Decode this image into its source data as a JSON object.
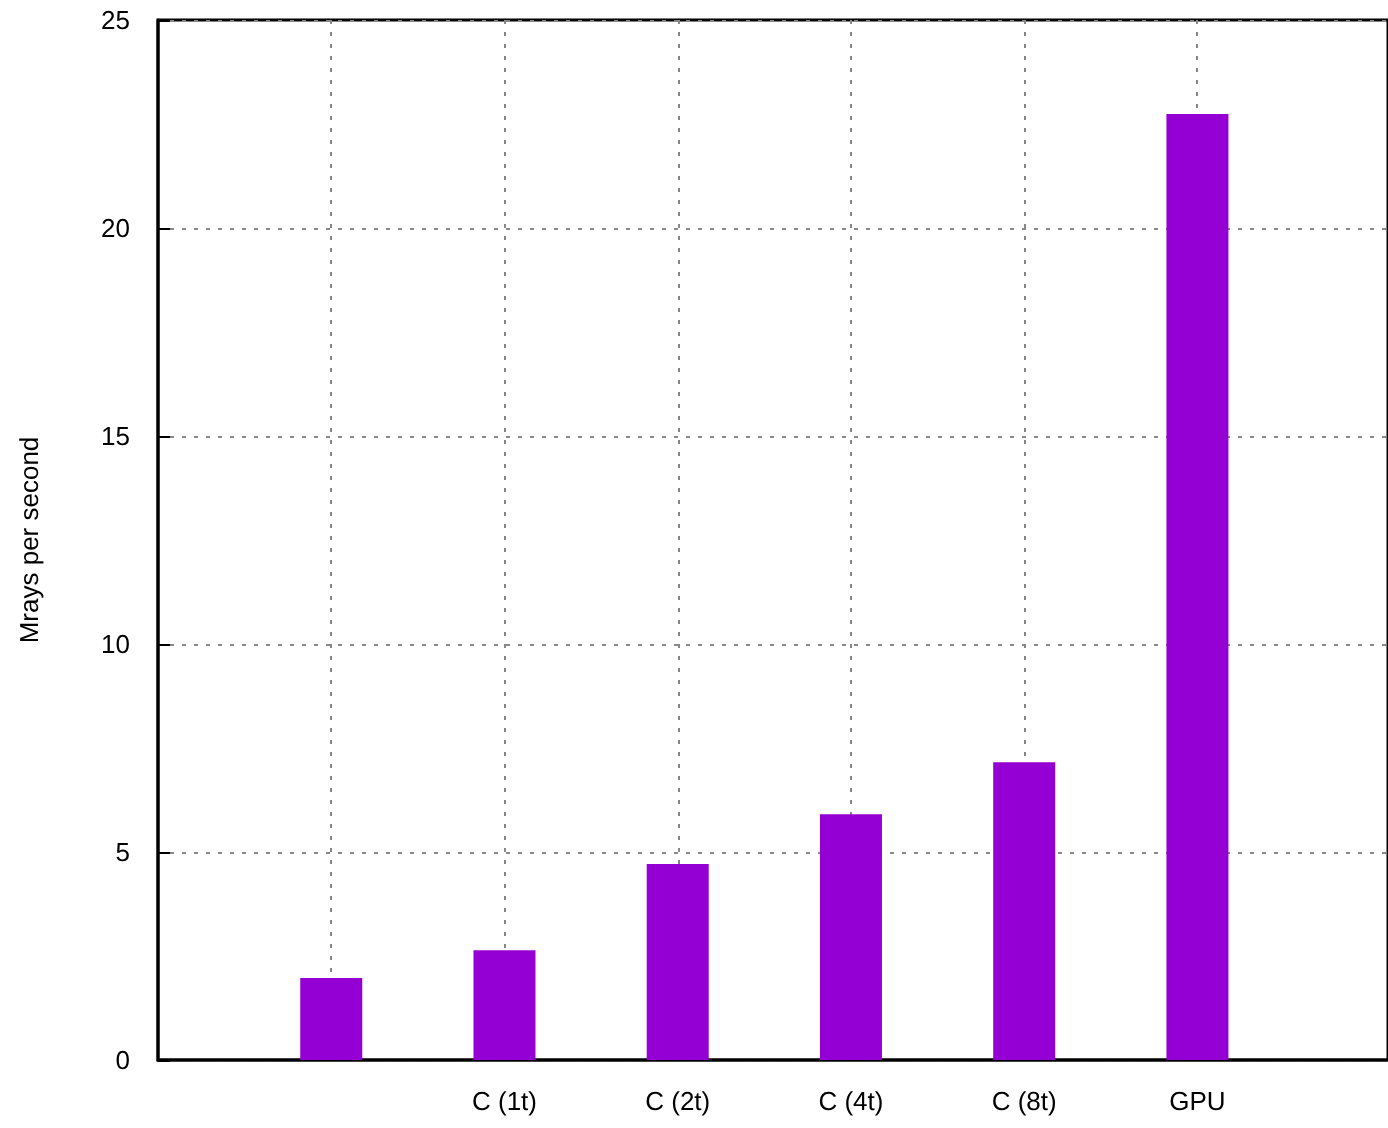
{
  "chart_data": {
    "type": "bar",
    "ylabel": "Mrays per second",
    "categories": [
      null,
      "C (1t)",
      "C (2t)",
      "C (4t)",
      "C (8t)",
      "GPU"
    ],
    "values": [
      1.97,
      2.64,
      4.71,
      5.91,
      7.16,
      22.74
    ],
    "color": "#9400d3",
    "ylim": [
      0,
      25
    ],
    "yticks": [
      0,
      5,
      10,
      15,
      20,
      25
    ],
    "grid": true
  }
}
